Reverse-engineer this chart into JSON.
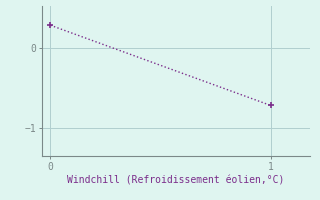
{
  "x": [
    0,
    1
  ],
  "y": [
    0.28,
    -0.72
  ],
  "line_color": "#7b2d8b",
  "marker": "+",
  "markersize": 5,
  "linewidth": 1.0,
  "linestyle": ":",
  "background_color": "#dff5f0",
  "plot_bg_color": "#dff5f0",
  "grid_color": "#b0cece",
  "axis_color": "#7b8888",
  "text_color": "#7b2d8b",
  "xlabel": "Windchill (Refroidissement éolien,°C)",
  "xlabel_fontsize": 7,
  "yticks": [
    0,
    -1
  ],
  "xticks": [
    0,
    1
  ],
  "xlim": [
    -0.04,
    1.18
  ],
  "ylim": [
    -1.35,
    0.52
  ],
  "tick_fontsize": 7,
  "font_family": "monospace"
}
